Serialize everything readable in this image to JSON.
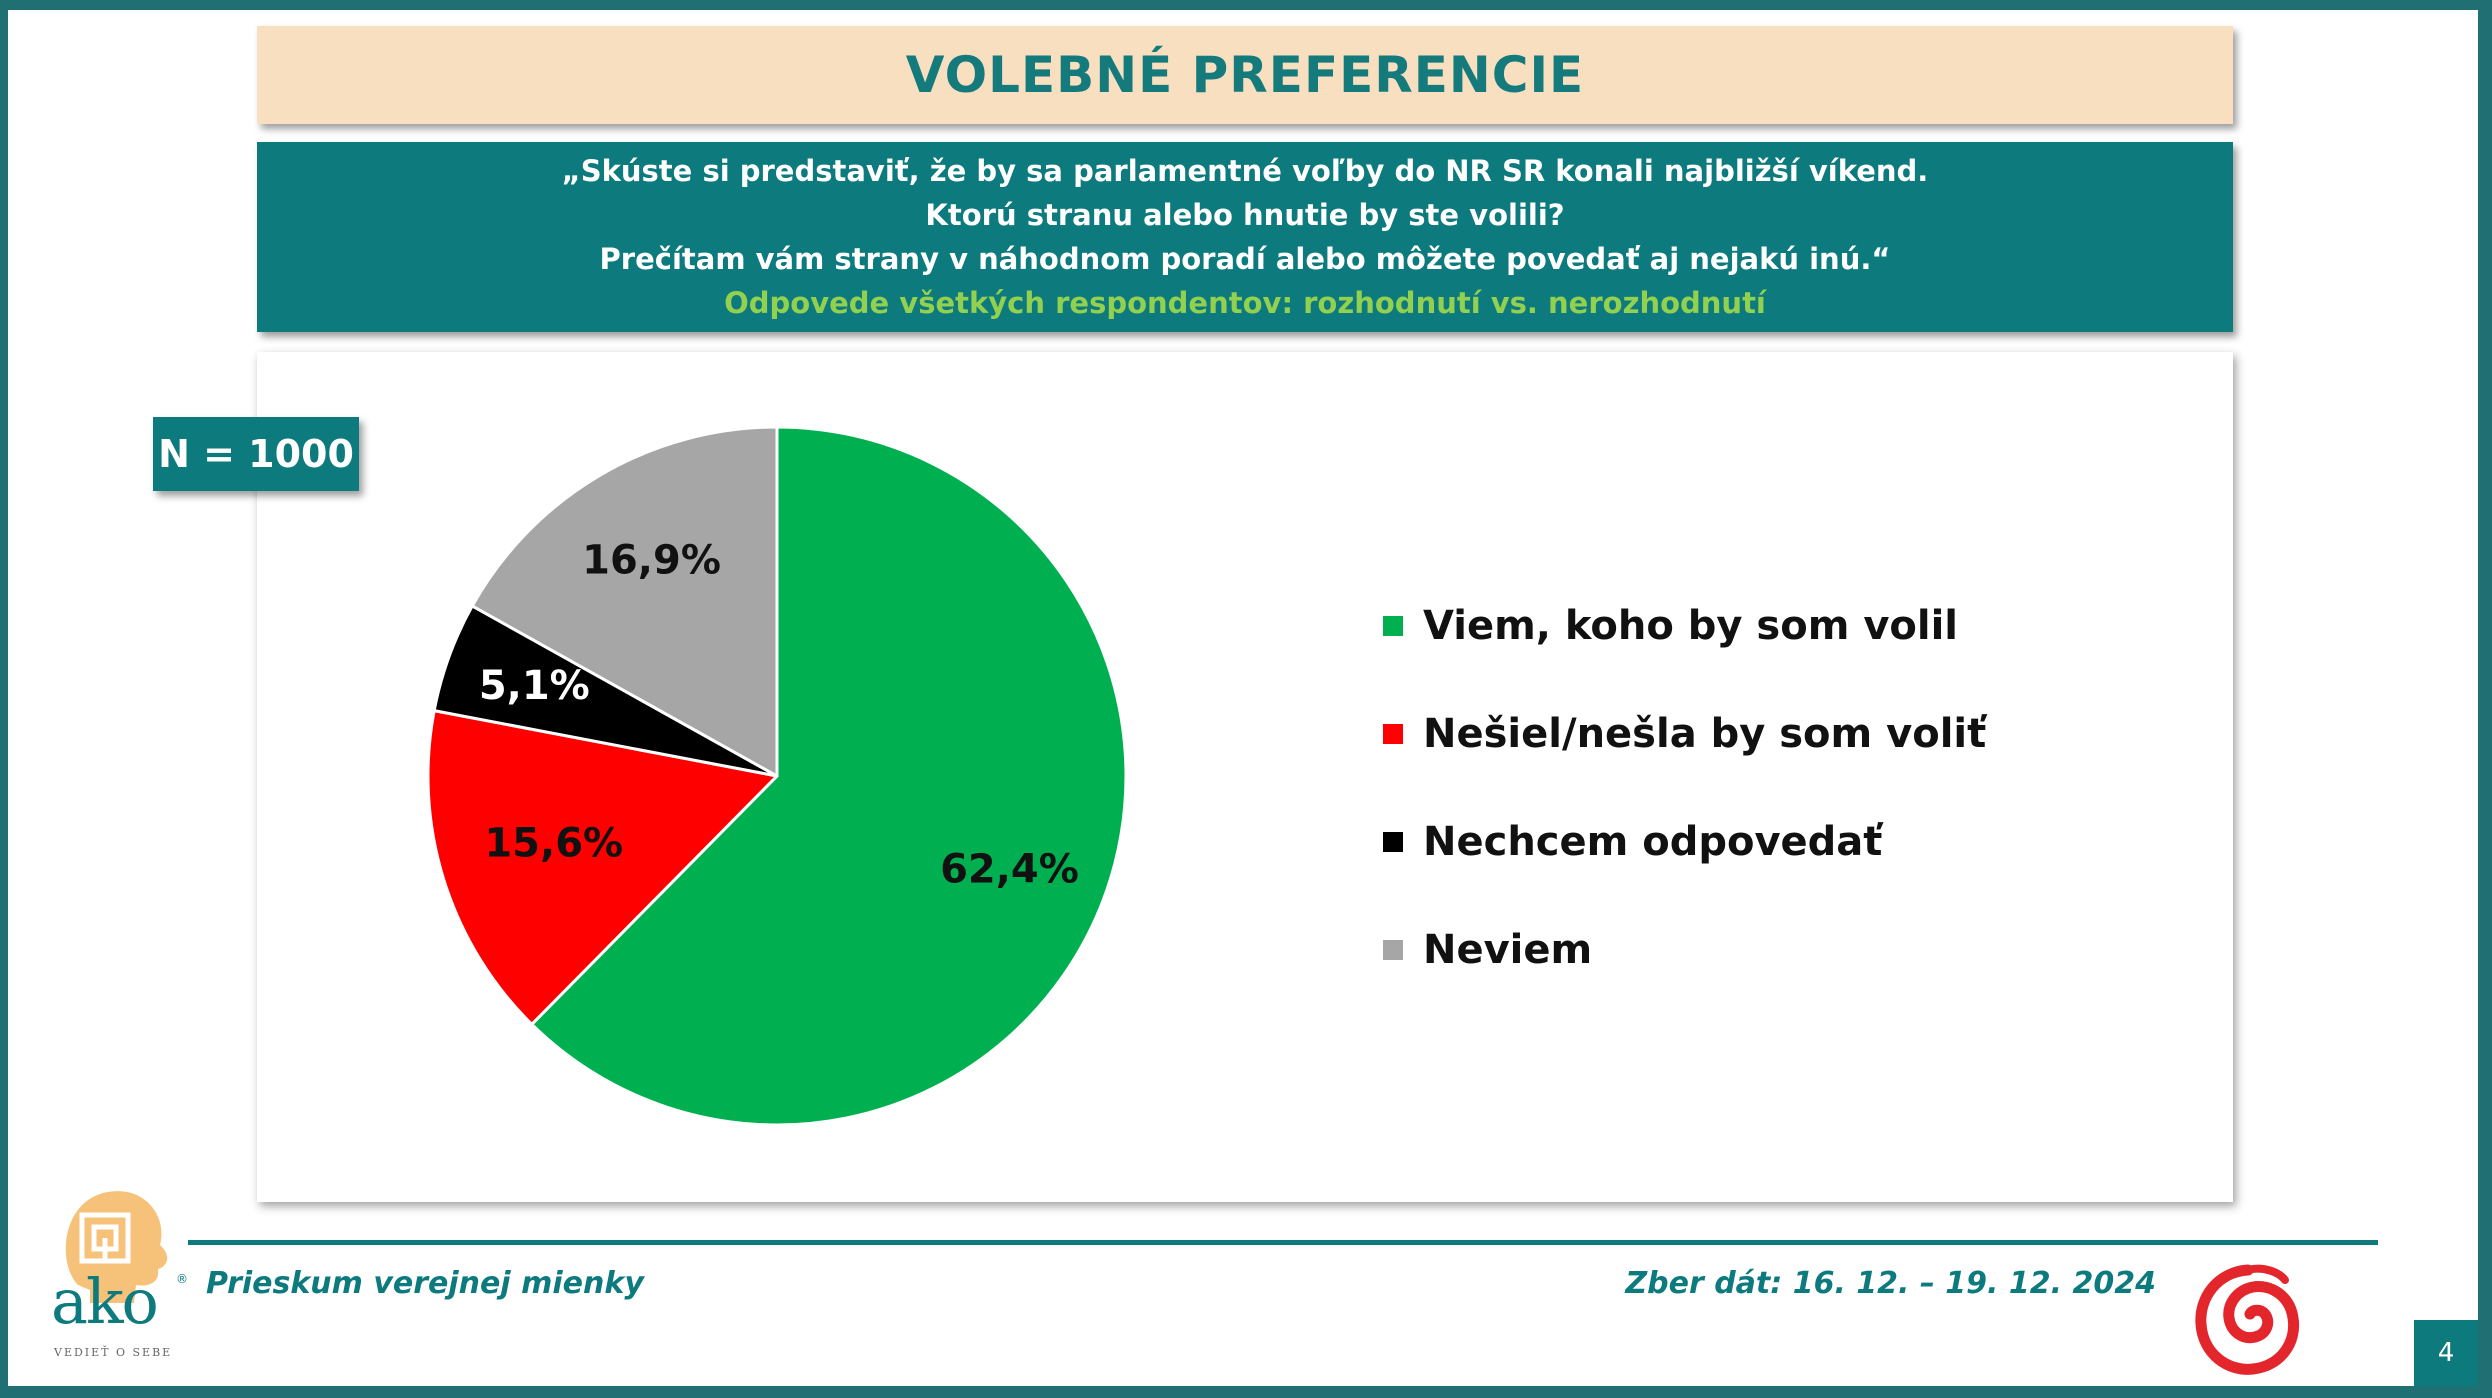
{
  "header": {
    "title": "VOLEBNÉ PREFERENCIE",
    "question_lines": [
      "„Skúste si predstaviť, že by sa parlamentné voľby do NR SR konali najbližší víkend.",
      "Ktorú stranu alebo hnutie by ste volili?",
      "Prečítam vám strany v náhodnom poradí alebo môžete povedať aj nejakú inú.“"
    ],
    "subtitle": "Odpovede všetkých respondentov: rozhodnutí vs. nerozhodnutí"
  },
  "badge": {
    "sample": "N = 1000"
  },
  "chart_data": {
    "type": "pie",
    "categories": [
      "Viem, koho by som volil",
      "Nešiel/nešla by som voliť",
      "Nechcem odpovedať",
      "Neviem"
    ],
    "values": [
      62.4,
      15.6,
      5.1,
      16.9
    ],
    "data_labels": [
      "62,4%",
      "15,6%",
      "5,1%",
      "16,9%"
    ],
    "colors": [
      "#00b050",
      "#ff0000",
      "#000000",
      "#a6a6a6"
    ],
    "label_colors": [
      "#111111",
      "#111111",
      "#ffffff",
      "#111111"
    ],
    "start_angle": "12 o'clock",
    "direction": "clockwise",
    "legend_position": "right"
  },
  "footer": {
    "left": "Prieskum verejnej mienky",
    "right": "Zber dát: 16. 12. – 19. 12. 2024",
    "page": "4",
    "logo_text": "ako",
    "logo_tagline": "VEDIEŤ O SEBE",
    "logo_registered": "®"
  }
}
